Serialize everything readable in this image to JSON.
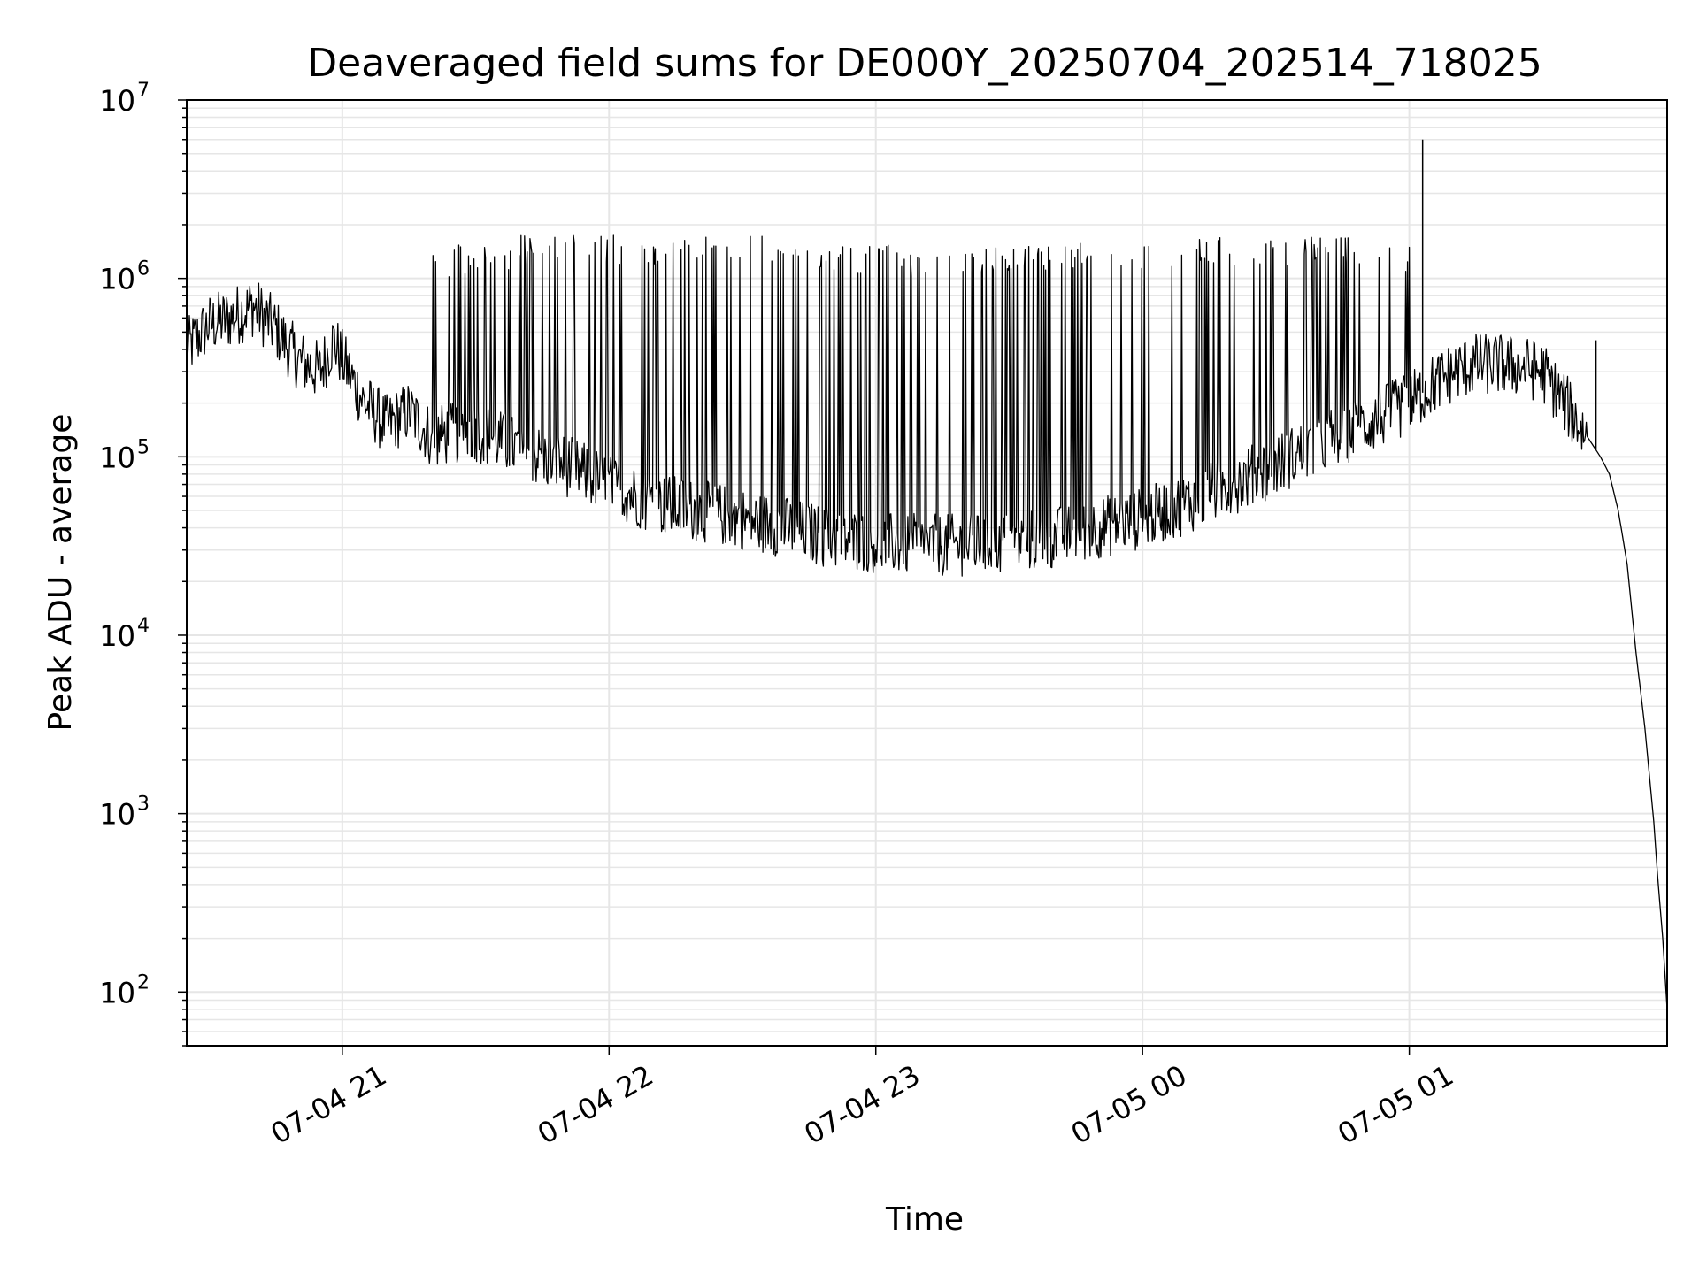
{
  "chart_data": {
    "type": "line",
    "title": "Deaveraged field sums for DE000Y_20250704_202514_718025",
    "xlabel": "Time",
    "ylabel": "Peak ADU - average",
    "yscale": "log",
    "ylim": [
      50,
      10000000
    ],
    "xlim": [
      "2025-07-04 20:25",
      "2025-07-05 01:58"
    ],
    "x_ticks": [
      "2025-07-04 21:00",
      "2025-07-04 22:00",
      "2025-07-04 23:00",
      "2025-07-05 00:00",
      "2025-07-05 01:00"
    ],
    "x_tick_labels": [
      "07-04 21",
      "07-04 22",
      "07-04 23",
      "07-05 00",
      "07-05 01"
    ],
    "y_ticks": [
      100,
      1000,
      10000,
      100000,
      1000000,
      10000000
    ],
    "y_tick_labels": [
      {
        "base": "10",
        "exp": "2"
      },
      {
        "base": "10",
        "exp": "3"
      },
      {
        "base": "10",
        "exp": "4"
      },
      {
        "base": "10",
        "exp": "5"
      },
      {
        "base": "10",
        "exp": "6"
      },
      {
        "base": "10",
        "exp": "7"
      }
    ],
    "grid": true,
    "line_color": "#000000",
    "grid_color": "#e6e6e6",
    "series": [
      {
        "x": [
          "2025-07-04 20:25",
          "2025-07-04 20:30",
          "2025-07-04 20:35",
          "2025-07-04 20:40",
          "2025-07-04 20:45",
          "2025-07-04 20:50",
          "2025-07-04 20:55",
          "2025-07-04 20:58",
          "2025-07-04 21:00",
          "2025-07-04 21:05",
          "2025-07-04 21:10",
          "2025-07-04 21:15",
          "2025-07-04 21:20",
          "2025-07-04 21:30",
          "2025-07-04 21:40",
          "2025-07-04 21:50",
          "2025-07-04 22:00",
          "2025-07-04 22:10",
          "2025-07-04 22:20",
          "2025-07-04 22:30",
          "2025-07-04 22:40",
          "2025-07-04 22:50",
          "2025-07-04 23:00",
          "2025-07-04 23:10",
          "2025-07-04 23:20",
          "2025-07-04 23:30",
          "2025-07-04 23:40",
          "2025-07-04 23:50",
          "2025-07-05 00:00",
          "2025-07-05 00:10",
          "2025-07-05 00:20",
          "2025-07-05 00:30",
          "2025-07-05 00:40",
          "2025-07-05 00:50",
          "2025-07-05 01:00",
          "2025-07-05 01:05",
          "2025-07-05 01:10",
          "2025-07-05 01:15",
          "2025-07-05 01:20",
          "2025-07-05 01:25",
          "2025-07-05 01:30",
          "2025-07-05 01:35",
          "2025-07-05 01:40",
          "2025-07-05 01:43",
          "2025-07-05 01:45",
          "2025-07-05 01:47",
          "2025-07-05 01:49",
          "2025-07-05 01:51",
          "2025-07-05 01:53",
          "2025-07-05 01:55",
          "2025-07-05 01:56",
          "2025-07-05 01:57",
          "2025-07-05 01:58"
        ],
        "y": [
          400000,
          550000,
          600000,
          700000,
          520000,
          350000,
          300000,
          450000,
          350000,
          200000,
          150000,
          180000,
          130000,
          140000,
          110000,
          90000,
          70000,
          55000,
          50000,
          45000,
          40000,
          35000,
          33000,
          32000,
          32000,
          33000,
          35000,
          40000,
          45000,
          55000,
          70000,
          90000,
          120000,
          150000,
          200000,
          250000,
          300000,
          330000,
          330000,
          320000,
          300000,
          200000,
          130000,
          100000,
          80000,
          50000,
          25000,
          8000,
          3000,
          900,
          400,
          200,
          80
        ],
        "spikes": [
          {
            "x": "2025-07-04 20:45",
            "y": 1500000
          },
          {
            "x": "2025-07-04 21:30",
            "y": 1300000
          },
          {
            "x": "2025-07-04 21:45",
            "y": 1400000
          },
          {
            "x": "2025-07-04 22:00",
            "y": 1600000
          },
          {
            "x": "2025-07-04 22:15",
            "y": 1600000
          },
          {
            "x": "2025-07-04 22:30",
            "y": 1500000
          },
          {
            "x": "2025-07-04 22:45",
            "y": 1400000
          },
          {
            "x": "2025-07-04 23:00",
            "y": 1300000
          },
          {
            "x": "2025-07-04 23:15",
            "y": 1300000
          },
          {
            "x": "2025-07-04 23:30",
            "y": 1350000
          },
          {
            "x": "2025-07-04 23:45",
            "y": 1400000
          },
          {
            "x": "2025-07-05 00:00",
            "y": 1450000
          },
          {
            "x": "2025-07-05 00:15",
            "y": 1500000
          },
          {
            "x": "2025-07-05 00:30",
            "y": 1550000
          },
          {
            "x": "2025-07-05 00:45",
            "y": 1400000
          },
          {
            "x": "2025-07-05 01:03",
            "y": 6000000
          },
          {
            "x": "2025-07-05 01:42",
            "y": 450000
          }
        ]
      }
    ]
  }
}
